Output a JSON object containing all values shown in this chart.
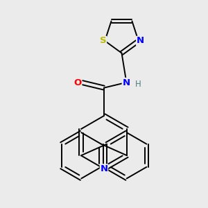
{
  "background_color": "#ebebeb",
  "bond_color": "#000000",
  "atom_colors": {
    "N": "#0000ff",
    "O": "#ff0000",
    "S": "#bbbb00",
    "H": "#4a8080",
    "C": "#000000"
  },
  "figsize": [
    3.0,
    3.0
  ],
  "dpi": 100
}
